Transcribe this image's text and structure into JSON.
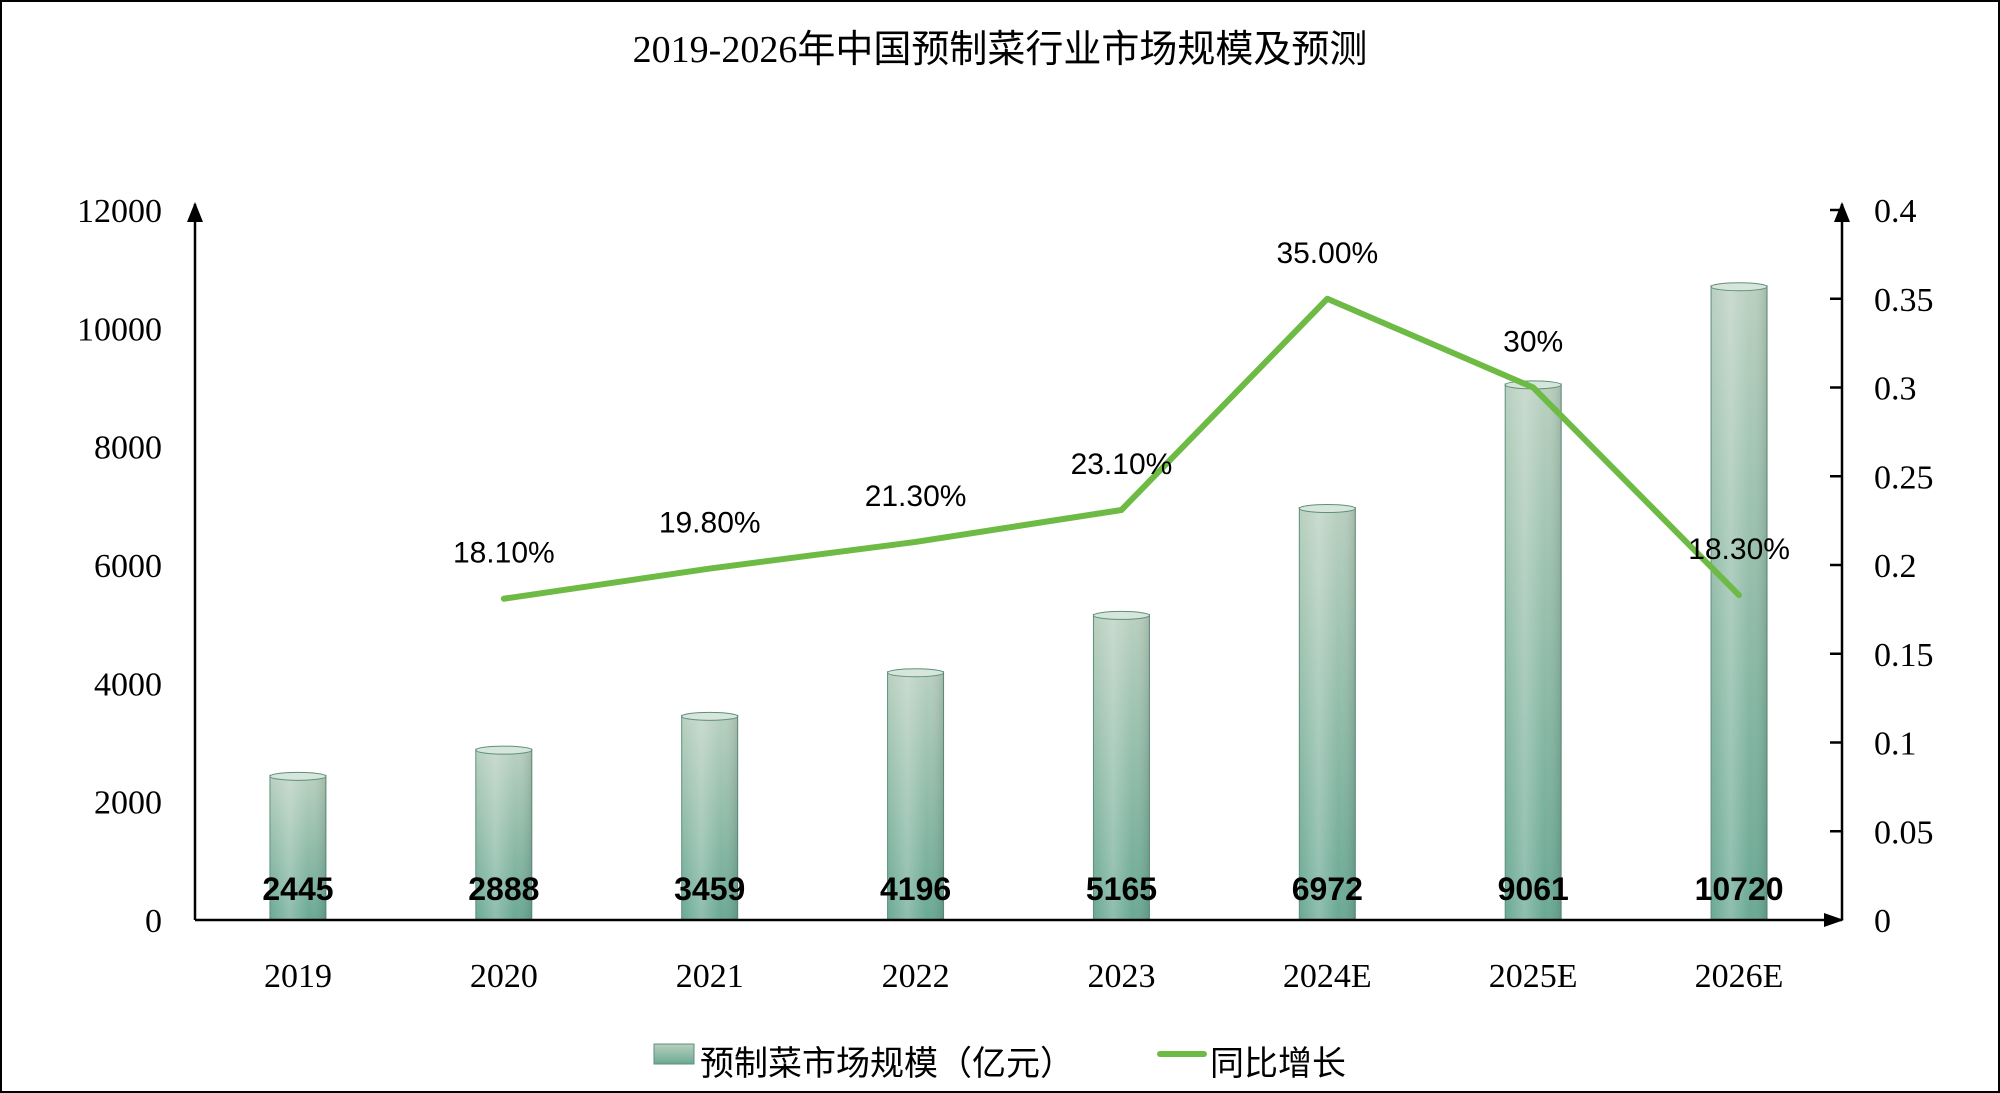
{
  "chart_data": {
    "type": "bar",
    "title": "2019-2026年中国预制菜行业市场规模及预测",
    "categories": [
      "2019",
      "2020",
      "2021",
      "2022",
      "2023",
      "2024E",
      "2025E",
      "2026E"
    ],
    "series": [
      {
        "name": "预制菜市场规模（亿元）",
        "type": "bar",
        "axis": "left",
        "values": [
          2445,
          2888,
          3459,
          4196,
          5165,
          6972,
          9061,
          10720
        ],
        "labels": [
          "2445",
          "2888",
          "3459",
          "4196",
          "5165",
          "6972",
          "9061",
          "10720"
        ]
      },
      {
        "name": "同比增长",
        "type": "line",
        "axis": "right",
        "values": [
          null,
          0.181,
          0.198,
          0.213,
          0.231,
          0.35,
          0.3,
          0.183
        ],
        "labels": [
          "",
          "18.10%",
          "19.80%",
          "21.30%",
          "23.10%",
          "35.00%",
          "30%",
          "18.30%"
        ]
      }
    ],
    "y_left": {
      "ylim": [
        0,
        12000
      ],
      "ticks": [
        "0",
        "2000",
        "4000",
        "6000",
        "8000",
        "10000",
        "12000"
      ]
    },
    "y_right": {
      "ylim": [
        0,
        0.4
      ],
      "ticks": [
        "0",
        "0.05",
        "0.1",
        "0.15",
        "0.2",
        "0.25",
        "0.3",
        "0.35",
        "0.4"
      ]
    },
    "legend_position": "bottom",
    "grid": false,
    "colors": {
      "bar_top": "#b9d0bf",
      "bar_bottom": "#6aa994",
      "bar_edge": "#5f8f7c",
      "line": "#6dbb45",
      "axis": "#000000"
    }
  }
}
